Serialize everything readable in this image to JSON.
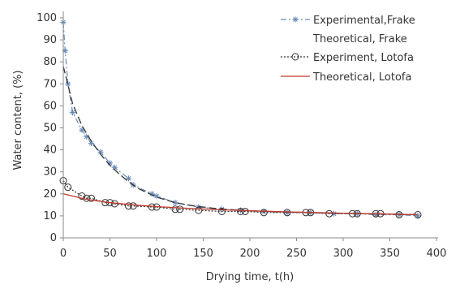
{
  "chart_data": {
    "type": "scatter",
    "title": "",
    "xlabel": "Drying time, t(h)",
    "ylabel": "Water content, (%)",
    "xlim": [
      0,
      400
    ],
    "ylim": [
      0,
      100
    ],
    "x_ticks": [
      "0",
      "50",
      "100",
      "150",
      "200",
      "250",
      "300",
      "350",
      "400"
    ],
    "y_ticks": [
      "0",
      "10",
      "20",
      "30",
      "40",
      "50",
      "60",
      "70",
      "80",
      "90",
      "100"
    ],
    "grid": false,
    "legend_position": "top-right",
    "series": [
      {
        "name": "Experimental,Frake",
        "style": "dash-dot line with star markers",
        "color": "#6a8ab8",
        "x": [
          0,
          2,
          5,
          10,
          20,
          25,
          30,
          40,
          50,
          55,
          70,
          75,
          95,
          100,
          120,
          145,
          170,
          190,
          215,
          240,
          265,
          290,
          315,
          335,
          360,
          380
        ],
        "y": [
          98,
          85,
          70,
          57,
          49,
          46,
          43,
          39,
          34,
          32,
          27,
          24,
          20,
          19,
          16,
          14,
          13,
          12.5,
          12,
          11.5,
          11.5,
          11,
          11,
          10.5,
          10.5,
          10
        ]
      },
      {
        "name": "Theoretical, Frake",
        "style": "long-dash line",
        "color": "#333333",
        "x": [
          0,
          10,
          20,
          30,
          40,
          50,
          60,
          70,
          80,
          90,
          100,
          120,
          140,
          160,
          180,
          200,
          240,
          280,
          320,
          360,
          380
        ],
        "y": [
          78,
          61,
          51,
          44,
          38,
          33,
          29,
          25.5,
          22.5,
          20.5,
          18.5,
          16,
          14.5,
          13.5,
          12.8,
          12.3,
          11.7,
          11.3,
          11,
          10.7,
          10.6
        ]
      },
      {
        "name": "Experiment, Lotofa",
        "style": "dotted line with open circle markers",
        "color": "#333333",
        "x": [
          0,
          5,
          20,
          25,
          30,
          45,
          50,
          55,
          70,
          75,
          95,
          100,
          120,
          125,
          145,
          170,
          190,
          195,
          215,
          240,
          260,
          265,
          285,
          310,
          315,
          335,
          340,
          360,
          380
        ],
        "y": [
          26,
          23,
          19,
          18,
          18,
          16,
          16,
          15.5,
          14.5,
          14.5,
          14,
          14,
          13,
          13,
          12.5,
          12,
          12,
          12,
          11.5,
          11.5,
          11.5,
          11.5,
          11,
          11,
          11,
          11,
          11,
          10.5,
          10.5
        ]
      },
      {
        "name": "Theoretical, Lotofa",
        "style": "solid line",
        "color": "#c0392b",
        "x": [
          0,
          25,
          50,
          75,
          100,
          125,
          150,
          175,
          200,
          250,
          300,
          350,
          380
        ],
        "y": [
          20,
          17.5,
          16,
          15,
          14.2,
          13.6,
          13.1,
          12.7,
          12.3,
          11.7,
          11.2,
          10.8,
          10.5
        ]
      }
    ]
  }
}
